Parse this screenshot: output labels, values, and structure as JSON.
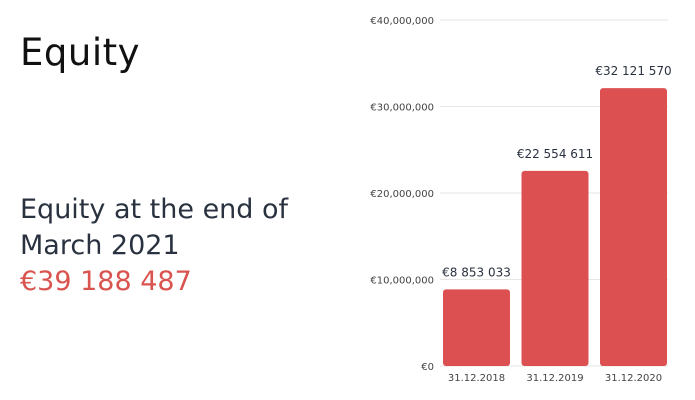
{
  "page": {
    "title": "Equity",
    "summary_line1": "Equity at the end of",
    "summary_line2": "March 2021",
    "summary_amount": "€39 188 487"
  },
  "colors": {
    "bar": "#dd5052",
    "accent_text": "#d9534f",
    "grid": "#e6e6e6",
    "axis_text": "#444444"
  },
  "chart_data": {
    "type": "bar",
    "categories": [
      "31.12.2018",
      "31.12.2019",
      "31.12.2020"
    ],
    "values": [
      8853033,
      22554611,
      32121570
    ],
    "data_labels": [
      "€8 853 033",
      "€22 554 611",
      "€32 121 570"
    ],
    "ylim": [
      0,
      40000000
    ],
    "yticks": [
      0,
      10000000,
      20000000,
      30000000,
      40000000
    ],
    "ytick_labels": [
      "€0",
      "€10,000,000",
      "€20,000,000",
      "€30,000,000",
      "€40,000,000"
    ],
    "title": "",
    "xlabel": "",
    "ylabel": "",
    "grid": true
  }
}
